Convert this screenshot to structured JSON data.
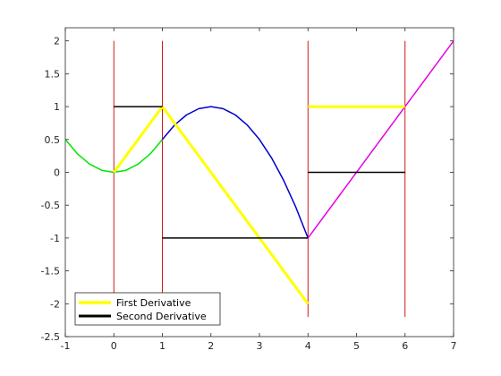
{
  "chart_data": {
    "type": "line",
    "title": "",
    "xlabel": "",
    "ylabel": "",
    "xlim": [
      -1,
      7
    ],
    "ylim": [
      -2.5,
      2.2
    ],
    "x_ticks": [
      -1,
      0,
      1,
      2,
      3,
      4,
      5,
      6,
      7
    ],
    "x_tick_labels": [
      "-1",
      "0",
      "1",
      "2",
      "3",
      "4",
      "5",
      "6",
      "7"
    ],
    "y_ticks": [
      2,
      1.5,
      1,
      0.5,
      0,
      -0.5,
      -1,
      -1.5,
      -2,
      -2.5
    ],
    "y_tick_labels": [
      "2",
      "1.5",
      "1",
      "0.5",
      "0",
      "-0.5",
      "-1",
      "-1.5",
      "-2",
      "-2.5"
    ],
    "grid": false,
    "legend_position": "bottom-left",
    "vertical_lines": {
      "x": [
        0,
        1,
        4,
        6
      ],
      "y_range": [
        -2.2,
        2
      ],
      "color": "#cc0000"
    },
    "series": [
      {
        "id": "piece-green",
        "color": "#00e600",
        "width": 1.5,
        "x": [
          -1,
          -0.75,
          -0.5,
          -0.25,
          0,
          0.25,
          0.5,
          0.75,
          1
        ],
        "y": [
          0.5,
          0.281,
          0.125,
          0.031,
          0,
          0.031,
          0.125,
          0.281,
          0.5
        ]
      },
      {
        "id": "piece-blue",
        "color": "#0000cc",
        "width": 1.5,
        "x": [
          1,
          1.25,
          1.5,
          1.75,
          2,
          2.25,
          2.5,
          2.75,
          3,
          3.25,
          3.5,
          3.75,
          4
        ],
        "y": [
          0.5,
          0.719,
          0.875,
          0.969,
          1,
          0.969,
          0.875,
          0.719,
          0.5,
          0.219,
          -0.125,
          -0.531,
          -1
        ]
      },
      {
        "id": "piece-magenta",
        "color": "#e600e6",
        "width": 1.5,
        "x": [
          4,
          7
        ],
        "y": [
          -1,
          2
        ]
      },
      {
        "name": "First Derivative",
        "color": "#ffff00",
        "width": 3,
        "segments": [
          {
            "x": [
              0,
              1
            ],
            "y": [
              0,
              1
            ]
          },
          {
            "x": [
              1,
              4
            ],
            "y": [
              1,
              -2
            ]
          },
          {
            "x": [
              4,
              6
            ],
            "y": [
              1,
              1
            ]
          }
        ]
      },
      {
        "name": "Second Derivative",
        "color": "#000000",
        "width": 1.5,
        "segments": [
          {
            "x": [
              0,
              1
            ],
            "y": [
              1,
              1
            ]
          },
          {
            "x": [
              1,
              4
            ],
            "y": [
              -1,
              -1
            ]
          },
          {
            "x": [
              4,
              6
            ],
            "y": [
              0,
              0
            ]
          }
        ]
      }
    ],
    "legend": [
      {
        "label": "First Derivative",
        "color": "#ffff00"
      },
      {
        "label": "Second Derivative",
        "color": "#000000"
      }
    ]
  }
}
